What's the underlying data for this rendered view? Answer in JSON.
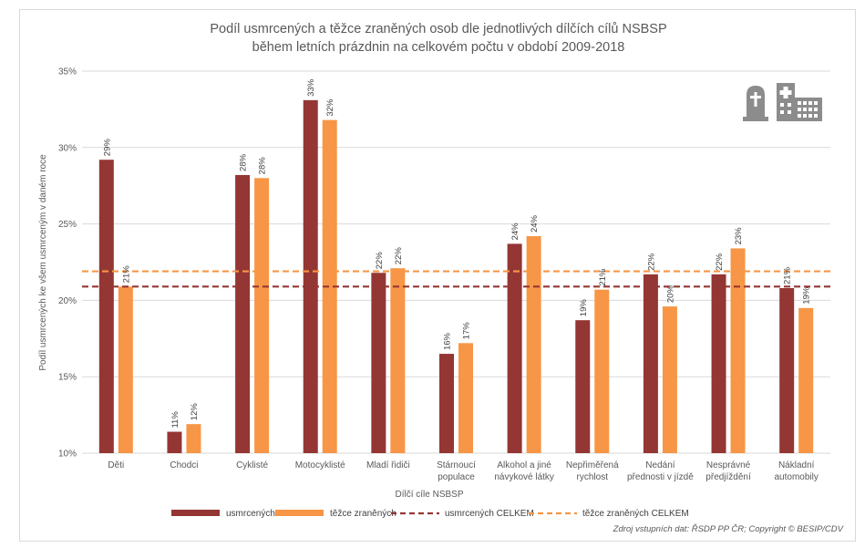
{
  "colors": {
    "deaths": "#943634",
    "injuries": "#f79646",
    "grid": "#d9d9d9",
    "icon": "#8c8c8c"
  },
  "chart_data": {
    "type": "bar",
    "title": "Podíl usmrcených a těžce zraněných osob dle jednotlivých dílčích cílů NSBSP",
    "subtitle": "během letních prázdnin na celkovém počtu v období 2009-2018",
    "xlabel": "Dílčí cíle NSBSP",
    "ylabel": "Podíl usmrcených ke všem usmrceným v daném roce",
    "ylim": [
      0.1,
      0.35
    ],
    "yticks": [
      {
        "value": 0.1,
        "label": "10%"
      },
      {
        "value": 0.15,
        "label": "15%"
      },
      {
        "value": 0.2,
        "label": "20%"
      },
      {
        "value": 0.25,
        "label": "25%"
      },
      {
        "value": 0.3,
        "label": "30%"
      },
      {
        "value": 0.35,
        "label": "35%"
      }
    ],
    "grid": true,
    "legend_position": "bottom",
    "categories": [
      [
        "Děti"
      ],
      [
        "Chodci"
      ],
      [
        "Cyklisté"
      ],
      [
        "Motocyklisté"
      ],
      [
        "Mladí řidiči"
      ],
      [
        "Stárnoucí",
        "populace"
      ],
      [
        "Alkohol a jiné",
        "návykové látky"
      ],
      [
        "Nepřiměřená",
        "rychlost"
      ],
      [
        "Nedání",
        "přednosti v jízdě"
      ],
      [
        "Nesprávné",
        "předjíždění"
      ],
      [
        "Nákladní",
        "automobily"
      ]
    ],
    "series": [
      {
        "name": "usmrcených",
        "color": "#943634",
        "values": [
          0.292,
          0.114,
          0.282,
          0.331,
          0.218,
          0.165,
          0.237,
          0.187,
          0.217,
          0.217,
          0.208
        ],
        "labels": [
          "29%",
          "11%",
          "28%",
          "33%",
          "22%",
          "16%",
          "24%",
          "19%",
          "22%",
          "22%",
          "21%"
        ]
      },
      {
        "name": "těžce zraněných",
        "color": "#f79646",
        "values": [
          0.209,
          0.119,
          0.28,
          0.318,
          0.221,
          0.172,
          0.242,
          0.207,
          0.196,
          0.234,
          0.195
        ],
        "labels": [
          "21%",
          "12%",
          "28%",
          "32%",
          "22%",
          "17%",
          "24%",
          "21%",
          "20%",
          "23%",
          "19%"
        ]
      }
    ],
    "reference_lines": [
      {
        "name": "usmrcených CELKEM",
        "value": 0.209,
        "color": "#943634"
      },
      {
        "name": "těžce zraněných CELKEM",
        "value": 0.219,
        "color": "#f79646"
      }
    ],
    "source": "Zdroj vstupních dat: ŘSDP PP ČR; Copyright © BESIP/CDV",
    "icons": [
      "tombstone-icon",
      "hospital-icon"
    ]
  }
}
